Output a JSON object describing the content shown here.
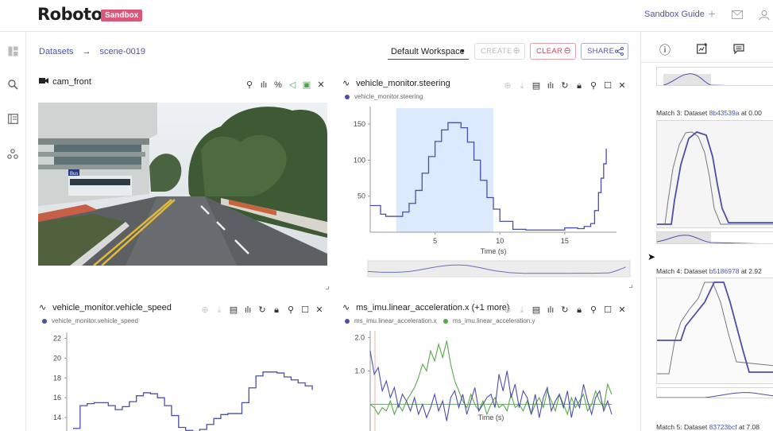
{
  "header": {
    "logo_text": "Roboto",
    "badge": "Sandbox",
    "guide_link": "Sandbox Guide",
    "icons": [
      "plus-icon",
      "mail-icon",
      "user-icon"
    ]
  },
  "rail": {
    "icons": [
      "dashboard-icon",
      "search-icon",
      "notebook-icon",
      "collections-icon"
    ]
  },
  "breadcrumb": {
    "root": "Datasets",
    "arrow": "→",
    "current": "scene-0019"
  },
  "workspace": {
    "selected": "Default Workspace",
    "create_label": "CREATE",
    "clear_label": "CLEAR",
    "share_label": "SHARE"
  },
  "panels": {
    "cam": {
      "title": "cam_front",
      "scene_sign": "Bus"
    },
    "steering": {
      "title": "vehicle_monitor.steering",
      "legend": "vehicle_monitor.steering"
    },
    "speed": {
      "title": "vehicle_monitor.vehicle_speed",
      "legend": "vehicle_monitor.vehicle_speed"
    },
    "accel": {
      "title": "ms_imu.linear_acceleration.x (+1 more)",
      "legend_x": "ms_imu.linear_acceleration.x",
      "legend_y": "ms_imu.linear_acceleration.y"
    }
  },
  "colors": {
    "brand_pink": "#d8587a",
    "link_blue": "#4a56a6",
    "series_blue": "#4b4fa8",
    "series_green": "#5aa84e",
    "highlight": "#dbeafc"
  },
  "chart_data": [
    {
      "type": "line",
      "xlabel": "Time (s)",
      "x_ticks": [
        5,
        10,
        15
      ],
      "y_ticks": [
        50,
        100,
        150
      ],
      "xlim": [
        0,
        18.5
      ],
      "ylim": [
        0,
        170
      ],
      "highlight_range": [
        2,
        9.5
      ],
      "series": [
        {
          "name": "vehicle_monitor.steering",
          "x": [
            0,
            0.8,
            1.2,
            2,
            2.5,
            3,
            3.5,
            4,
            4.5,
            5,
            5.5,
            6,
            6.5,
            7,
            7.5,
            8,
            8.5,
            9,
            9.5,
            10,
            11,
            12,
            13,
            14,
            15,
            16,
            16.5,
            17,
            17.3,
            17.6,
            17.8,
            18,
            18.2
          ],
          "y": [
            37,
            25,
            22,
            22,
            28,
            40,
            58,
            82,
            105,
            126,
            142,
            152,
            152,
            145,
            125,
            100,
            72,
            48,
            32,
            15,
            4,
            3,
            3,
            3,
            6,
            5,
            8,
            12,
            30,
            55,
            75,
            95,
            116
          ]
        }
      ]
    },
    {
      "type": "line",
      "x_ticks": [],
      "y_ticks": [
        14,
        16,
        18,
        20,
        22
      ],
      "ylim": [
        12.8,
        22.6
      ],
      "series": [
        {
          "name": "vehicle_monitor.vehicle_speed",
          "x": [
            0,
            1,
            2,
            3,
            4,
            5,
            6,
            7,
            8,
            9,
            10,
            11,
            12,
            13,
            14,
            15,
            16,
            17,
            18,
            19,
            20,
            21,
            22,
            23,
            24,
            25,
            26,
            27,
            28,
            29,
            30,
            31,
            32,
            33,
            34
          ],
          "y": [
            12.9,
            15.2,
            15.4,
            15.5,
            15.5,
            15.2,
            14.8,
            15.1,
            15.6,
            16.2,
            16.5,
            16.4,
            16,
            15.2,
            14.2,
            13.0,
            12.7,
            12.6,
            12.8,
            13.3,
            13.9,
            14.3,
            14.4,
            14.4,
            15.5,
            17.0,
            18.2,
            18.6,
            18.6,
            18.5,
            18.1,
            17.8,
            17.5,
            17.2,
            16.8
          ]
        }
      ]
    },
    {
      "type": "line",
      "xlabel": "Time (s)",
      "y_ticks": [
        1.0,
        2.0
      ],
      "ylim": [
        -0.8,
        2.2
      ],
      "series": [
        {
          "name": "ms_imu.linear_acceleration.x",
          "x": [
            0,
            1,
            2,
            3,
            4,
            5,
            6,
            7,
            8,
            9,
            10,
            11,
            12,
            13,
            14,
            15,
            16,
            17,
            18,
            19,
            20,
            21,
            22,
            23,
            24,
            25,
            26,
            27,
            28,
            29,
            30,
            31,
            32,
            33,
            34,
            35,
            36,
            37,
            38,
            39,
            40,
            41,
            42,
            43,
            44,
            45,
            46,
            47,
            48,
            49,
            50,
            51,
            52,
            53,
            54,
            55,
            56,
            57,
            58,
            59,
            60
          ],
          "y": [
            1.6,
            0.9,
            1.1,
            0.4,
            0.7,
            0.2,
            0.5,
            -0.1,
            0.3,
            0.1,
            -0.2,
            0.2,
            -0.3,
            0.0,
            -0.4,
            -0.1,
            0.3,
            -0.2,
            0.1,
            -0.5,
            0.2,
            0.4,
            -0.1,
            0.3,
            -0.3,
            0.1,
            0.5,
            -0.2,
            0.0,
            0.2,
            0.3,
            -0.1,
            0.9,
            0.4,
            1.0,
            0.2,
            0.6,
            -0.1,
            0.4,
            0.2,
            -0.3,
            0.3,
            -0.4,
            0.2,
            0.5,
            -0.2,
            0.1,
            0.3,
            -0.1,
            0.4,
            -0.4,
            0.2,
            -0.1,
            0.6,
            0.1,
            -0.3,
            0.2,
            0.4,
            -0.2,
            0.1,
            -0.3
          ]
        },
        {
          "name": "ms_imu.linear_acceleration.y",
          "x": [
            0,
            1,
            2,
            3,
            4,
            5,
            6,
            7,
            8,
            9,
            10,
            11,
            12,
            13,
            14,
            15,
            16,
            17,
            18,
            19,
            20,
            21,
            22,
            23,
            24,
            25,
            26,
            27,
            28,
            29,
            30,
            31,
            32,
            33,
            34,
            35,
            36,
            37,
            38,
            39,
            40,
            41,
            42,
            43,
            44,
            45,
            46,
            47,
            48,
            49,
            50,
            51,
            52,
            53,
            54,
            55,
            56,
            57,
            58,
            59,
            60
          ],
          "y": [
            0.0,
            -0.1,
            -0.3,
            -0.1,
            -0.2,
            0.1,
            -0.3,
            0.0,
            -0.2,
            0.1,
            0.3,
            0.5,
            0.8,
            1.2,
            1.0,
            1.6,
            1.3,
            1.8,
            1.4,
            1.9,
            1.2,
            0.7,
            0.4,
            0.1,
            -0.1,
            0.3,
            0.0,
            -0.2,
            0.1,
            -0.3,
            0.0,
            0.2,
            -0.1,
            0.0,
            -0.2,
            0.3,
            -0.1,
            0.0,
            -0.2,
            0.1,
            -0.3,
            0.0,
            0.2,
            -0.1,
            0.4,
            0.1,
            -0.2,
            0.3,
            0.0,
            -0.3,
            0.2,
            -0.1,
            0.1,
            0.3,
            -0.2,
            0.0,
            0.4,
            0.1,
            -0.1,
            0.6,
            0.3
          ]
        }
      ]
    }
  ],
  "sidebar": {
    "tabs": [
      "info-icon",
      "add-chart-icon",
      "comment-icon"
    ],
    "matches": [
      {
        "prefix": "Match 3: Dataset ",
        "id": "8b43539a",
        "suffix": " at 0.00"
      },
      {
        "prefix": "Match 4: Dataset ",
        "id": "b5186978",
        "suffix": " at 2.92"
      },
      {
        "prefix": "Match 5: Dataset ",
        "id": "83723bcf",
        "suffix": " at 7.08"
      }
    ]
  }
}
